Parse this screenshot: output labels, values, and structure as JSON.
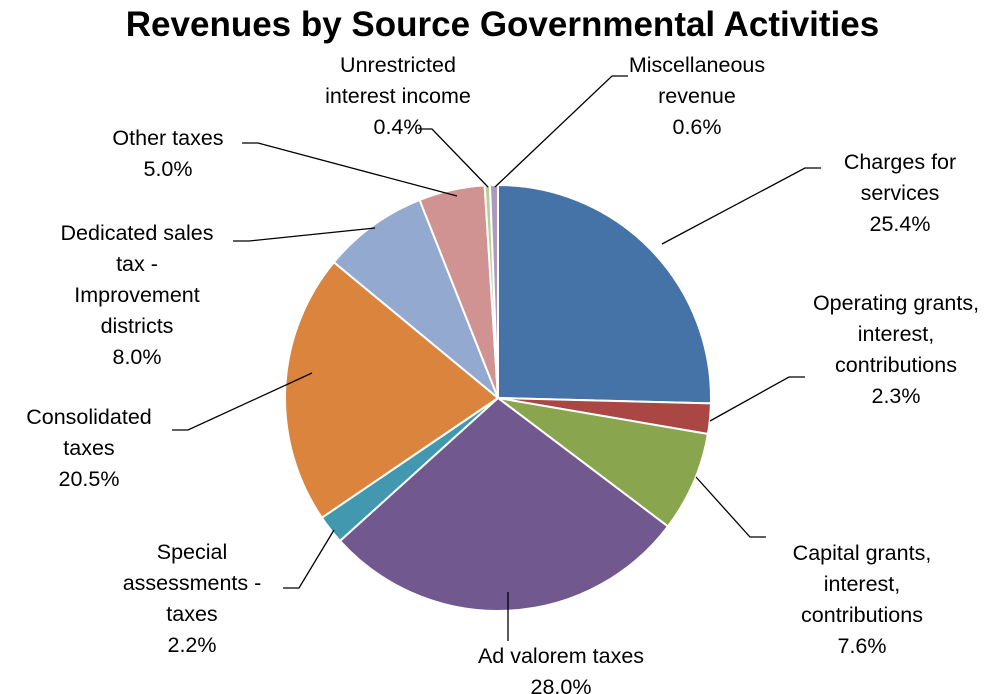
{
  "chart_data": {
    "type": "pie",
    "title": "Revenues by Source Governmental Activities",
    "slices": [
      {
        "name": "Charges for services",
        "label_lines": [
          "Charges for",
          "services"
        ],
        "pct_label": "25.4%",
        "value": 25.4,
        "color": "#4572A7"
      },
      {
        "name": "Operating grants, interest, contributions",
        "label_lines": [
          "Operating grants,",
          "interest,",
          "contributions"
        ],
        "pct_label": "2.3%",
        "value": 2.3,
        "color": "#AA4643"
      },
      {
        "name": "Capital grants, interest, contributions",
        "label_lines": [
          "Capital grants,",
          "interest,",
          "contributions"
        ],
        "pct_label": "7.6%",
        "value": 7.6,
        "color": "#89A54E"
      },
      {
        "name": "Ad valorem taxes",
        "label_lines": [
          "Ad valorem taxes"
        ],
        "pct_label": "28.0%",
        "value": 28.0,
        "color": "#71588F"
      },
      {
        "name": "Special assessments - taxes",
        "label_lines": [
          "Special",
          "assessments -",
          "taxes"
        ],
        "pct_label": "2.2%",
        "value": 2.2,
        "color": "#4198AF"
      },
      {
        "name": "Consolidated taxes",
        "label_lines": [
          "Consolidated",
          "taxes"
        ],
        "pct_label": "20.5%",
        "value": 20.5,
        "color": "#DB843D"
      },
      {
        "name": "Dedicated sales tax - Improvement districts",
        "label_lines": [
          "Dedicated sales",
          "tax -",
          "Improvement",
          "districts"
        ],
        "pct_label": "8.0%",
        "value": 8.0,
        "color": "#93A9CF"
      },
      {
        "name": "Other taxes",
        "label_lines": [
          "Other taxes"
        ],
        "pct_label": "5.0%",
        "value": 5.0,
        "color": "#D19392"
      },
      {
        "name": "Unrestricted interest income",
        "label_lines": [
          "Unrestricted",
          "interest income"
        ],
        "pct_label": "0.4%",
        "value": 0.4,
        "color": "#B9CD96"
      },
      {
        "name": "Miscellaneous revenue",
        "label_lines": [
          "Miscellaneous",
          "revenue"
        ],
        "pct_label": "0.6%",
        "value": 0.6,
        "color": "#A99BBD"
      }
    ],
    "legend": "none"
  }
}
